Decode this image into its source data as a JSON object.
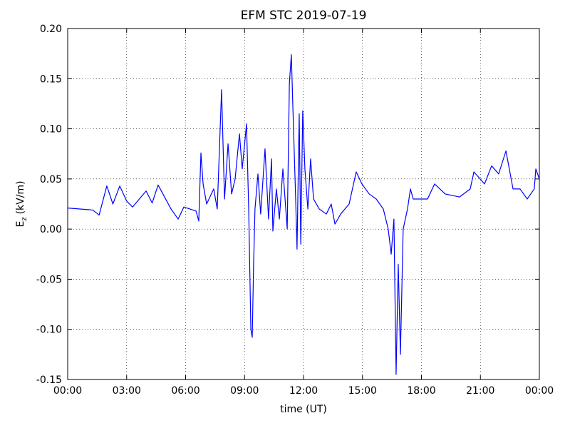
{
  "chart_data": {
    "type": "line",
    "title": "EFM STC    2019-07-19",
    "xlabel": "time (UT)",
    "ylabel": {
      "base": "E",
      "sub": "z",
      "unit": "(kV/m)"
    },
    "x": [
      0,
      1.27,
      1.6,
      1.99,
      2.3,
      2.65,
      3.0,
      3.3,
      3.99,
      4.3,
      4.6,
      5.26,
      5.62,
      5.91,
      6.53,
      6.67,
      6.78,
      6.89,
      7.07,
      7.43,
      7.61,
      7.83,
      7.98,
      8.16,
      8.34,
      8.52,
      8.74,
      8.88,
      9.1,
      9.21,
      9.32,
      9.39,
      9.46,
      9.53,
      9.68,
      9.82,
      10.04,
      10.22,
      10.37,
      10.44,
      10.62,
      10.77,
      10.95,
      11.06,
      11.17,
      11.28,
      11.38,
      11.46,
      11.6,
      11.67,
      11.78,
      11.86,
      11.96,
      12.07,
      12.22,
      12.36,
      12.51,
      12.8,
      13.16,
      13.41,
      13.6,
      13.89,
      14.32,
      14.68,
      14.97,
      15.34,
      15.7,
      16.06,
      16.31,
      16.46,
      16.6,
      16.71,
      16.82,
      16.93,
      17.07,
      17.29,
      17.44,
      17.58,
      18.31,
      18.67,
      19.21,
      19.94,
      20.48,
      20.67,
      21.21,
      21.57,
      21.93,
      22.3,
      22.66,
      23.02,
      23.38,
      23.74,
      23.82,
      24
    ],
    "series": [
      {
        "name": "Ez",
        "color": "#0000ff",
        "values": [
          0.021,
          0.019,
          0.014,
          0.043,
          0.025,
          0.043,
          0.028,
          0.022,
          0.038,
          0.026,
          0.044,
          0.02,
          0.01,
          0.022,
          0.018,
          0.008,
          0.076,
          0.045,
          0.025,
          0.04,
          0.02,
          0.139,
          0.03,
          0.085,
          0.035,
          0.05,
          0.095,
          0.06,
          0.105,
          0.02,
          -0.1,
          -0.108,
          -0.035,
          0.02,
          0.055,
          0.015,
          0.08,
          0.01,
          0.07,
          -0.002,
          0.04,
          0.01,
          0.06,
          0.03,
          0.0,
          0.145,
          0.174,
          0.12,
          0.03,
          -0.02,
          0.115,
          -0.015,
          0.118,
          0.06,
          0.02,
          0.07,
          0.03,
          0.02,
          0.015,
          0.025,
          0.005,
          0.015,
          0.025,
          0.057,
          0.045,
          0.035,
          0.03,
          0.02,
          0.0,
          -0.025,
          0.01,
          -0.145,
          -0.035,
          -0.125,
          0.0,
          0.02,
          0.04,
          0.03,
          0.03,
          0.045,
          0.035,
          0.032,
          0.04,
          0.057,
          0.045,
          0.063,
          0.055,
          0.078,
          0.04,
          0.04,
          0.03,
          0.04,
          0.06,
          0.05
        ]
      }
    ],
    "xlim": [
      0,
      24
    ],
    "xticks": [
      {
        "value": 0,
        "label": "00:00"
      },
      {
        "value": 3,
        "label": "03:00"
      },
      {
        "value": 6,
        "label": "06:00"
      },
      {
        "value": 9,
        "label": "09:00"
      },
      {
        "value": 12,
        "label": "12:00"
      },
      {
        "value": 15,
        "label": "15:00"
      },
      {
        "value": 18,
        "label": "18:00"
      },
      {
        "value": 21,
        "label": "21:00"
      },
      {
        "value": 24,
        "label": "00:00"
      }
    ],
    "ylim": [
      -0.15,
      0.2
    ],
    "yticks": [
      {
        "value": -0.15,
        "label": "-0.15"
      },
      {
        "value": -0.1,
        "label": "-0.10"
      },
      {
        "value": -0.05,
        "label": "-0.05"
      },
      {
        "value": 0,
        "label": "0.00"
      },
      {
        "value": 0.05,
        "label": "0.05"
      },
      {
        "value": 0.1,
        "label": "0.10"
      },
      {
        "value": 0.15,
        "label": "0.15"
      },
      {
        "value": 0.2,
        "label": "0.20"
      }
    ],
    "grid": true
  }
}
